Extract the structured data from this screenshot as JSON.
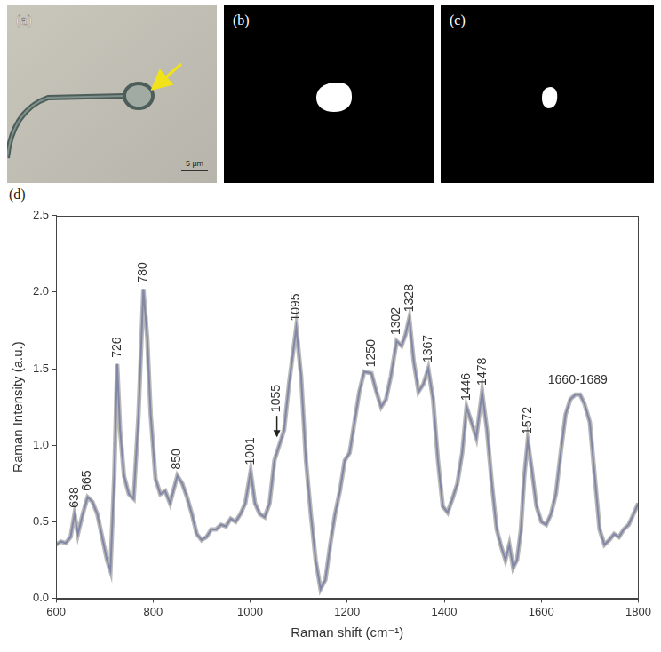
{
  "panels": [
    {
      "label": "(a)",
      "scale_bar": "5 μm"
    },
    {
      "label": "(b)"
    },
    {
      "label": "(c)"
    }
  ],
  "chart_data": {
    "panel_label": "(d)",
    "type": "line",
    "x_label": "Raman shift (cm⁻¹)",
    "y_label": "Raman Intensity (a.u.)",
    "x": [
      600,
      610,
      620,
      630,
      638,
      645,
      655,
      665,
      675,
      685,
      695,
      705,
      712,
      720,
      726,
      732,
      740,
      750,
      760,
      770,
      780,
      788,
      795,
      805,
      815,
      825,
      835,
      850,
      860,
      870,
      880,
      890,
      900,
      910,
      920,
      930,
      940,
      950,
      960,
      970,
      980,
      990,
      1001,
      1010,
      1020,
      1030,
      1040,
      1050,
      1060,
      1070,
      1080,
      1095,
      1105,
      1115,
      1125,
      1135,
      1145,
      1155,
      1165,
      1175,
      1185,
      1195,
      1205,
      1215,
      1225,
      1235,
      1250,
      1260,
      1270,
      1280,
      1290,
      1302,
      1312,
      1320,
      1328,
      1337,
      1347,
      1357,
      1367,
      1377,
      1387,
      1397,
      1407,
      1417,
      1427,
      1437,
      1446,
      1456,
      1466,
      1478,
      1488,
      1498,
      1508,
      1518,
      1526,
      1534,
      1542,
      1550,
      1558,
      1565,
      1572,
      1580,
      1590,
      1600,
      1610,
      1620,
      1630,
      1640,
      1650,
      1660,
      1670,
      1680,
      1689,
      1700,
      1710,
      1720,
      1730,
      1740,
      1750,
      1760,
      1770,
      1780,
      1790,
      1800
    ],
    "values": [
      0.35,
      0.37,
      0.36,
      0.4,
      0.55,
      0.42,
      0.55,
      0.66,
      0.63,
      0.55,
      0.4,
      0.25,
      0.18,
      0.8,
      1.53,
      1.1,
      0.8,
      0.68,
      0.65,
      1.2,
      2.02,
      1.7,
      1.2,
      0.78,
      0.68,
      0.7,
      0.62,
      0.8,
      0.75,
      0.66,
      0.55,
      0.42,
      0.38,
      0.4,
      0.45,
      0.45,
      0.48,
      0.47,
      0.52,
      0.5,
      0.55,
      0.62,
      0.83,
      0.62,
      0.55,
      0.53,
      0.62,
      0.9,
      1.0,
      1.1,
      1.4,
      1.77,
      1.45,
      0.9,
      0.55,
      0.25,
      0.06,
      0.12,
      0.35,
      0.55,
      0.7,
      0.9,
      0.95,
      1.15,
      1.35,
      1.48,
      1.47,
      1.35,
      1.25,
      1.3,
      1.45,
      1.68,
      1.65,
      1.72,
      1.83,
      1.55,
      1.35,
      1.4,
      1.5,
      1.3,
      0.9,
      0.6,
      0.56,
      0.65,
      0.75,
      0.95,
      1.25,
      1.15,
      1.05,
      1.35,
      1.1,
      0.75,
      0.45,
      0.33,
      0.25,
      0.35,
      0.2,
      0.25,
      0.45,
      0.8,
      1.03,
      0.85,
      0.6,
      0.5,
      0.48,
      0.55,
      0.68,
      0.95,
      1.2,
      1.3,
      1.33,
      1.33,
      1.27,
      1.15,
      0.8,
      0.45,
      0.35,
      0.38,
      0.42,
      0.4,
      0.45,
      0.48,
      0.55,
      0.62
    ],
    "color": "#2b3fbf",
    "xlim": [
      600,
      1800
    ],
    "xticks": [
      600,
      800,
      1000,
      1200,
      1400,
      1600,
      1800
    ],
    "ylim": [
      0,
      2.5
    ],
    "yticks": [
      {
        "value": 0,
        "label": "0.0"
      },
      0.5,
      {
        "value": 1,
        "label": "1.0"
      },
      1.5,
      {
        "value": 2,
        "label": "2.0"
      },
      2.5
    ],
    "grid": false,
    "annotations": [
      {
        "text": "638",
        "x": 638
      },
      {
        "text": "665",
        "x": 665
      },
      {
        "text": "726",
        "x": 726
      },
      {
        "text": "780",
        "x": 780
      },
      {
        "text": "850",
        "x": 850
      },
      {
        "text": "1001",
        "x": 1001
      },
      {
        "text": "1055",
        "x": 1055,
        "arrow": true
      },
      {
        "text": "1095",
        "x": 1095
      },
      {
        "text": "1250",
        "x": 1250
      },
      {
        "text": "1302",
        "x": 1302
      },
      {
        "text": "1328",
        "x": 1328
      },
      {
        "text": "1367",
        "x": 1367
      },
      {
        "text": "1446",
        "x": 1446
      },
      {
        "text": "1478",
        "x": 1478
      },
      {
        "text": "1572",
        "x": 1572
      },
      {
        "text": "1660-1689",
        "x": 1675
      }
    ]
  }
}
